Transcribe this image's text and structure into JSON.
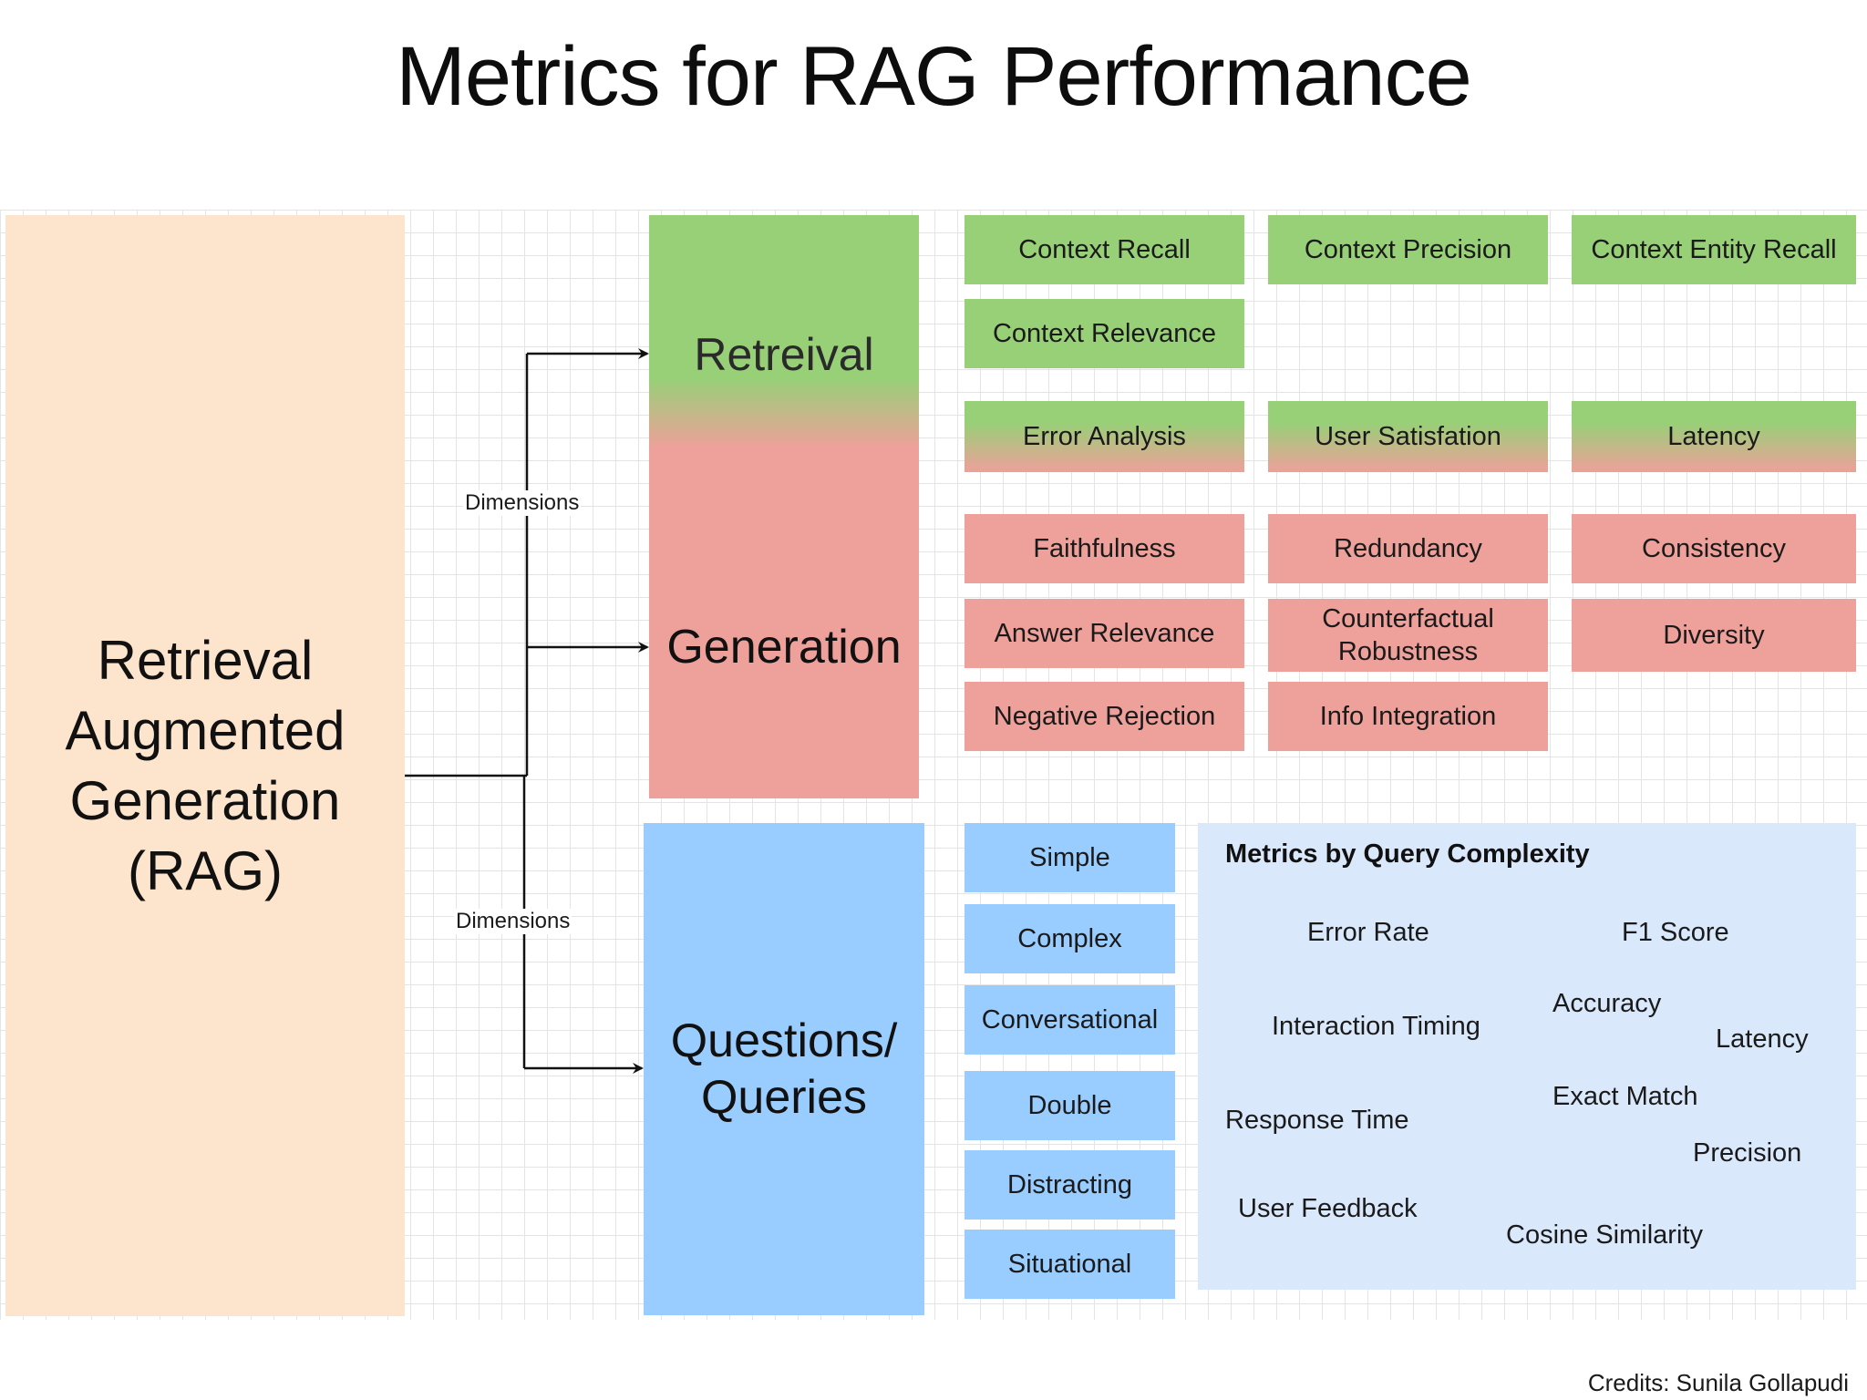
{
  "title": "Metrics for RAG Performance",
  "root": {
    "line1": "Retrieval",
    "line2": "Augmented",
    "line3": "Generation",
    "line4": "(RAG)"
  },
  "connectors": {
    "upper_label": "Dimensions",
    "lower_label": "Dimensions"
  },
  "dimensions": {
    "retrieval": "Retreival",
    "generation": "Generation",
    "queries_line1": "Questions/",
    "queries_line2": "Queries"
  },
  "retrieval_metrics": [
    "Context Recall",
    "Context Precision",
    "Context Entity Recall",
    "Context Relevance"
  ],
  "shared_metrics": [
    "Error Analysis",
    "User Satisfation",
    "Latency"
  ],
  "generation_metrics": [
    "Faithfulness",
    "Redundancy",
    "Consistency",
    "Answer Relevance",
    "Counterfactual Robustness",
    "Diversity",
    "Negative Rejection",
    "Info Integration"
  ],
  "query_types": [
    "Simple",
    "Complex",
    "Conversational",
    "Double",
    "Distracting",
    "Situational"
  ],
  "complexity_panel": {
    "title": "Metrics by Query Complexity",
    "metrics": [
      "Error Rate",
      "F1 Score",
      "Accuracy",
      "Interaction Timing",
      "Latency",
      "Exact Match",
      "Response Time",
      "Precision",
      "User Feedback",
      "Cosine Similarity"
    ]
  },
  "colors": {
    "root": "#fde4cc",
    "retrieval": "#97d077",
    "generation": "#eea09a",
    "queries": "#99ccff",
    "panel": "#dae8fc"
  },
  "credits": "Credits: Sunila Gollapudi"
}
